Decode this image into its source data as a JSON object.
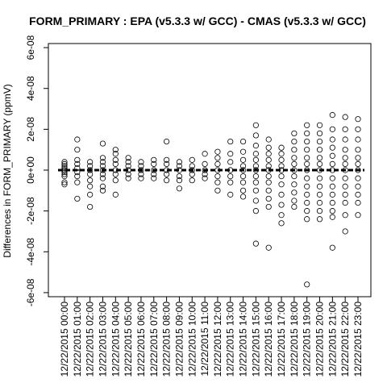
{
  "chart_data": {
    "type": "strip",
    "title": "FORM_PRIMARY : EPA (v5.3.3 w/ GCC) - CMAS (v5.3.3 w/ GCC)",
    "ylabel": "Differences in FORM_PRIMARY (ppmV)",
    "categories": [
      "12/22/2015 00:00",
      "12/22/2015 01:00",
      "12/22/2015 02:00",
      "12/22/2015 03:00",
      "12/22/2015 04:00",
      "12/22/2015 05:00",
      "12/22/2015 06:00",
      "12/22/2015 07:00",
      "12/22/2015 08:00",
      "12/22/2015 09:00",
      "12/22/2015 10:00",
      "12/22/2015 11:00",
      "12/22/2015 12:00",
      "12/22/2015 13:00",
      "12/22/2015 14:00",
      "12/22/2015 15:00",
      "12/22/2015 16:00",
      "12/22/2015 17:00",
      "12/22/2015 18:00",
      "12/22/2015 19:00",
      "12/22/2015 20:00",
      "12/22/2015 21:00",
      "12/22/2015 22:00",
      "12/22/2015 23:00"
    ],
    "values": [
      [
        4e-09,
        3e-09,
        2e-09,
        1e-09,
        0,
        -1e-09,
        -2e-09,
        -3e-09,
        -6e-09,
        -7e-09
      ],
      [
        1.5e-08,
        1e-08,
        5e-09,
        3e-09,
        1e-09,
        -1e-09,
        -3e-09,
        -6e-09,
        -1.4e-08
      ],
      [
        4e-09,
        2e-09,
        0,
        -2e-09,
        -5e-09,
        -8e-09,
        -1.2e-08,
        -1.8e-08
      ],
      [
        1.3e-08,
        6e-09,
        4e-09,
        2e-09,
        0,
        -2e-09,
        -4e-09,
        -8e-09,
        -1e-08
      ],
      [
        1e-08,
        8e-09,
        5e-09,
        3e-09,
        0,
        -2e-09,
        -5e-09,
        -1.2e-08
      ],
      [
        6e-09,
        4e-09,
        2e-09,
        0,
        -2e-09,
        -4e-09
      ],
      [
        4e-09,
        2e-09,
        0,
        -2e-09,
        -4e-09
      ],
      [
        5e-09,
        3e-09,
        0,
        -2e-09,
        -4e-09
      ],
      [
        1.4e-08,
        5e-09,
        3e-09,
        0,
        -2e-09,
        -5e-09
      ],
      [
        4e-09,
        2e-09,
        0,
        -3e-09,
        -5e-09,
        -9e-09
      ],
      [
        5e-09,
        2e-09,
        0,
        -2e-09,
        -5e-09
      ],
      [
        8e-09,
        3e-09,
        0,
        -2e-09,
        -4e-09
      ],
      [
        9e-09,
        6e-09,
        3e-09,
        0,
        -3e-09,
        -6e-09,
        -1e-08
      ],
      [
        1.4e-08,
        8e-09,
        4e-09,
        0,
        -3e-09,
        -6e-09,
        -1.2e-08
      ],
      [
        1.4e-08,
        9e-09,
        5e-09,
        2e-09,
        0,
        -3e-09,
        -6e-09,
        -1e-08,
        -1.3e-08
      ],
      [
        2.2e-08,
        1.7e-08,
        1.2e-08,
        8e-09,
        5e-09,
        2e-09,
        0,
        -3e-09,
        -6e-09,
        -1e-08,
        -1.5e-08,
        -2e-08,
        -3.6e-08
      ],
      [
        1.5e-08,
        1.1e-08,
        8e-09,
        5e-09,
        2e-09,
        0,
        -3e-09,
        -6e-09,
        -1e-08,
        -1.4e-08,
        -1.8e-08,
        -3.8e-08
      ],
      [
        1.1e-08,
        8e-09,
        5e-09,
        2e-09,
        0,
        -3e-09,
        -7e-09,
        -1.2e-08,
        -1.7e-08,
        -2.2e-08,
        -2.6e-08
      ],
      [
        1.8e-08,
        1.4e-08,
        1e-08,
        6e-09,
        3e-09,
        0,
        -3e-09,
        -7e-09,
        -1.1e-08,
        -1.5e-08,
        -1.8e-08
      ],
      [
        2.2e-08,
        1.8e-08,
        1.4e-08,
        1e-08,
        6e-09,
        3e-09,
        0,
        -4e-09,
        -8e-09,
        -1.2e-08,
        -1.6e-08,
        -2e-08,
        -2.4e-08,
        -5.6e-08
      ],
      [
        2.2e-08,
        1.8e-08,
        1.4e-08,
        1e-08,
        6e-09,
        3e-09,
        0,
        -4e-09,
        -8e-09,
        -1.2e-08,
        -1.6e-08,
        -2e-08,
        -2.4e-08
      ],
      [
        2.7e-08,
        2e-08,
        1.5e-08,
        1.1e-08,
        7e-09,
        3e-09,
        0,
        -4e-09,
        -8e-09,
        -1.2e-08,
        -1.6e-08,
        -2e-08,
        -2.3e-08,
        -3.8e-08
      ],
      [
        2.6e-08,
        2e-08,
        1.5e-08,
        1e-08,
        6e-09,
        3e-09,
        0,
        -4e-09,
        -8e-09,
        -1.2e-08,
        -1.6e-08,
        -2.2e-08,
        -3e-08
      ],
      [
        2.5e-08,
        2e-08,
        1.5e-08,
        1e-08,
        6e-09,
        3e-09,
        0,
        -4e-09,
        -8e-09,
        -1.2e-08,
        -1.6e-08,
        -2.2e-08
      ]
    ],
    "color": "#000000",
    "hline": 0,
    "ylim": [
      -6.2e-08,
      6.2e-08
    ],
    "yticks": [
      {
        "value": -6e-08,
        "label": "-6e-08"
      },
      {
        "value": -4e-08,
        "label": "-4e-08"
      },
      {
        "value": -2e-08,
        "label": "-2e-08"
      },
      {
        "value": 0,
        "label": "0e+00"
      },
      {
        "value": 2e-08,
        "label": "2e-08"
      },
      {
        "value": 4e-08,
        "label": "4e-08"
      },
      {
        "value": 6e-08,
        "label": "6e-08"
      }
    ]
  }
}
